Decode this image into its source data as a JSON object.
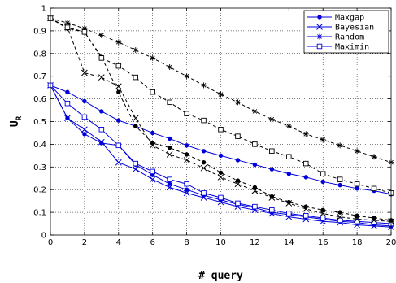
{
  "chart_data": {
    "type": "line",
    "xlabel": "# query",
    "ylabel": "U",
    "ylabel_subscript": "R",
    "xlim": [
      0,
      20
    ],
    "ylim": [
      0,
      1
    ],
    "xticks": [
      0,
      2,
      4,
      6,
      8,
      10,
      12,
      14,
      16,
      18,
      20
    ],
    "yticks": [
      0,
      0.1,
      0.2,
      0.3,
      0.4,
      0.5,
      0.6,
      0.7,
      0.8,
      0.9,
      1
    ],
    "grid": true,
    "legend_position": "top-right",
    "legend": [
      {
        "label": "Maxgap",
        "marker": "dot"
      },
      {
        "label": "Bayesian",
        "marker": "x"
      },
      {
        "label": "Random",
        "marker": "star"
      },
      {
        "label": "Maximin",
        "marker": "square"
      }
    ],
    "groups": [
      {
        "color": "#0000dd",
        "dash": "none",
        "series": [
          {
            "marker": "dot",
            "values": [
              0.66,
              0.63,
              0.59,
              0.545,
              0.505,
              0.48,
              0.45,
              0.425,
              0.395,
              0.37,
              0.35,
              0.33,
              0.31,
              0.29,
              0.27,
              0.255,
              0.235,
              0.22,
              0.205,
              0.195,
              0.18
            ]
          },
          {
            "marker": "x",
            "values": [
              0.66,
              0.515,
              0.465,
              0.41,
              0.32,
              0.29,
              0.245,
              0.21,
              0.185,
              0.165,
              0.145,
              0.125,
              0.11,
              0.095,
              0.08,
              0.07,
              0.06,
              0.055,
              0.045,
              0.04,
              0.035
            ]
          },
          {
            "marker": "dot",
            "values": [
              0.66,
              0.515,
              0.445,
              0.405,
              0.395,
              0.31,
              0.265,
              0.225,
              0.2,
              0.175,
              0.155,
              0.135,
              0.12,
              0.1,
              0.09,
              0.08,
              0.07,
              0.06,
              0.055,
              0.045,
              0.04
            ]
          },
          {
            "marker": "square",
            "values": [
              0.66,
              0.58,
              0.52,
              0.465,
              0.395,
              0.315,
              0.28,
              0.245,
              0.225,
              0.185,
              0.165,
              0.14,
              0.125,
              0.11,
              0.095,
              0.085,
              0.075,
              0.065,
              0.06,
              0.055,
              0.05
            ]
          }
        ]
      },
      {
        "color": "#000000",
        "dash": "4,3",
        "series": [
          {
            "marker": "star",
            "values": [
              0.955,
              0.935,
              0.91,
              0.88,
              0.85,
              0.815,
              0.78,
              0.74,
              0.7,
              0.66,
              0.62,
              0.585,
              0.545,
              0.51,
              0.48,
              0.445,
              0.42,
              0.395,
              0.37,
              0.345,
              0.32
            ]
          },
          {
            "marker": "x",
            "values": [
              0.955,
              0.915,
              0.715,
              0.695,
              0.655,
              0.515,
              0.395,
              0.355,
              0.33,
              0.295,
              0.255,
              0.225,
              0.195,
              0.165,
              0.14,
              0.115,
              0.095,
              0.08,
              0.07,
              0.065,
              0.06
            ]
          },
          {
            "marker": "dot",
            "values": [
              0.955,
              0.91,
              0.895,
              0.785,
              0.63,
              0.48,
              0.405,
              0.385,
              0.355,
              0.32,
              0.275,
              0.24,
              0.21,
              0.17,
              0.145,
              0.125,
              0.11,
              0.1,
              0.085,
              0.075,
              0.065
            ]
          },
          {
            "marker": "square",
            "values": [
              0.955,
              0.915,
              0.895,
              0.78,
              0.745,
              0.695,
              0.63,
              0.585,
              0.535,
              0.505,
              0.465,
              0.435,
              0.4,
              0.37,
              0.345,
              0.315,
              0.27,
              0.245,
              0.225,
              0.205,
              0.185
            ]
          }
        ]
      }
    ]
  }
}
